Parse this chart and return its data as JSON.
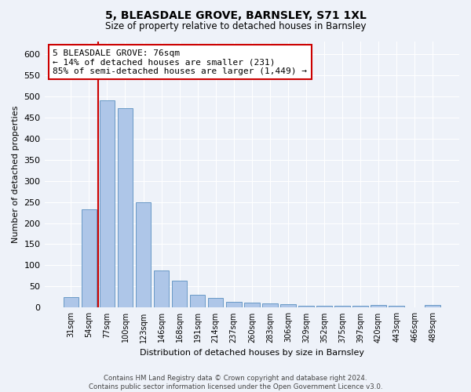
{
  "title": "5, BLEASDALE GROVE, BARNSLEY, S71 1XL",
  "subtitle": "Size of property relative to detached houses in Barnsley",
  "xlabel": "Distribution of detached houses by size in Barnsley",
  "ylabel": "Number of detached properties",
  "categories": [
    "31sqm",
    "54sqm",
    "77sqm",
    "100sqm",
    "123sqm",
    "146sqm",
    "168sqm",
    "191sqm",
    "214sqm",
    "237sqm",
    "260sqm",
    "283sqm",
    "306sqm",
    "329sqm",
    "352sqm",
    "375sqm",
    "397sqm",
    "420sqm",
    "443sqm",
    "466sqm",
    "489sqm"
  ],
  "values": [
    25,
    232,
    491,
    471,
    249,
    88,
    63,
    31,
    23,
    14,
    12,
    10,
    8,
    5,
    4,
    4,
    4,
    7,
    4,
    1,
    6
  ],
  "bar_color": "#aec6e8",
  "bar_edge_color": "#5a8fc0",
  "property_line_index": 2,
  "annotation_text": "5 BLEASDALE GROVE: 76sqm\n← 14% of detached houses are smaller (231)\n85% of semi-detached houses are larger (1,449) →",
  "annotation_box_color": "#ffffff",
  "annotation_box_edge_color": "#cc0000",
  "line_color": "#cc0000",
  "bg_color": "#eef2f9",
  "grid_color": "#ffffff",
  "footnote": "Contains HM Land Registry data © Crown copyright and database right 2024.\nContains public sector information licensed under the Open Government Licence v3.0.",
  "ylim": [
    0,
    630
  ],
  "yticks": [
    0,
    50,
    100,
    150,
    200,
    250,
    300,
    350,
    400,
    450,
    500,
    550,
    600
  ]
}
